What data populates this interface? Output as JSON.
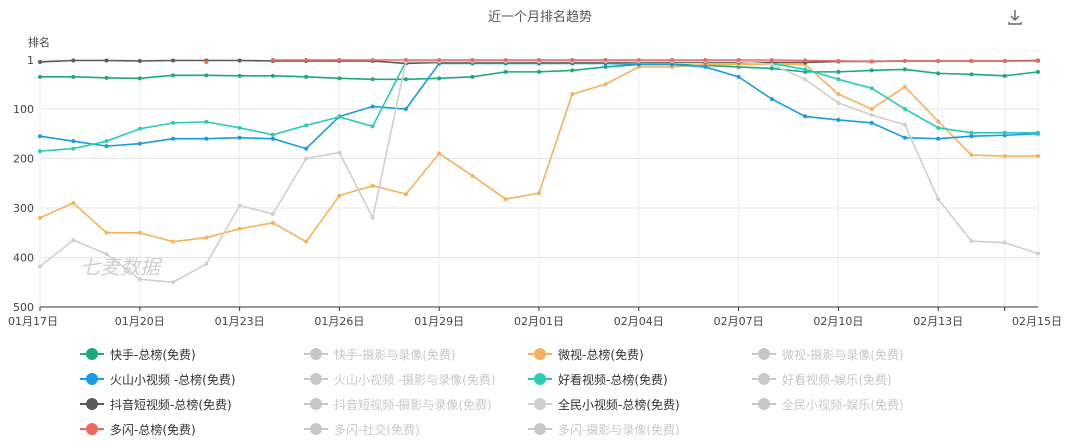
{
  "title": "近一个月排名趋势",
  "watermark": "七麦数据",
  "chart_data": {
    "type": "line",
    "ylabel": "排名",
    "ylim": [
      1,
      500
    ],
    "y_inverted": true,
    "y_ticks": [
      "1",
      "100",
      "200",
      "300",
      "400",
      "500"
    ],
    "x_ticks": [
      "01月17日",
      "01月20日",
      "01月23日",
      "01月26日",
      "01月29日",
      "02月01日",
      "02月04日",
      "02月07日",
      "02月10日",
      "02月13日",
      "02月15日"
    ],
    "grid": true,
    "series": [
      {
        "name": "快手-总榜(免费)",
        "color": "#1aaa7b",
        "active": true,
        "values": [
          35,
          35,
          37,
          38,
          32,
          32,
          33,
          33,
          35,
          38,
          40,
          40,
          38,
          35,
          25,
          25,
          22,
          15,
          10,
          10,
          12,
          15,
          18,
          25,
          25,
          22,
          20,
          28,
          30,
          33,
          25
        ]
      },
      {
        "name": "快手-摄影与录像(免费)",
        "color": "#c8c8c8",
        "active": false,
        "values": []
      },
      {
        "name": "微视-总榜(免费)",
        "color": "#f5b25a",
        "active": true,
        "values": [
          320,
          290,
          350,
          350,
          368,
          360,
          342,
          330,
          368,
          275,
          255,
          272,
          190,
          235,
          282,
          270,
          70,
          50,
          15,
          15,
          10,
          10,
          10,
          10,
          70,
          100,
          55,
          125,
          193,
          195,
          195
        ]
      },
      {
        "name": "微视-摄影与录像(免费)",
        "color": "#c8c8c8",
        "active": false,
        "values": []
      },
      {
        "name": "火山小视频 -总榜(免费)",
        "color": "#1a9be0",
        "active": true,
        "values": [
          155,
          165,
          175,
          170,
          160,
          160,
          158,
          160,
          180,
          115,
          95,
          100,
          8,
          8,
          8,
          8,
          8,
          8,
          10,
          10,
          15,
          35,
          80,
          115,
          122,
          128,
          158,
          160,
          155,
          153,
          150
        ]
      },
      {
        "name": "火山小视频 -摄影与录像(免费)",
        "color": "#c8c8c8",
        "active": false,
        "values": []
      },
      {
        "name": "好看视频-总榜(免费)",
        "color": "#29cdb5",
        "active": true,
        "values": [
          185,
          180,
          165,
          140,
          128,
          126,
          138,
          152,
          133,
          116,
          135,
          4,
          4,
          4,
          4,
          4,
          4,
          4,
          4,
          4,
          4,
          4,
          8,
          20,
          40,
          58,
          100,
          138,
          148,
          148,
          148
        ]
      },
      {
        "name": "好看视频-娱乐(免费)",
        "color": "#c8c8c8",
        "active": false,
        "values": []
      },
      {
        "name": "抖音短视频-总榜(免费)",
        "color": "#5a5a5a",
        "active": true,
        "values": [
          5,
          2,
          2,
          3,
          2,
          2,
          2,
          3,
          3,
          3,
          3,
          8,
          6,
          6,
          6,
          6,
          6,
          6,
          6,
          6,
          6,
          6,
          6,
          6,
          4,
          4,
          3,
          3,
          3,
          3,
          2
        ]
      },
      {
        "name": "抖音短视频-摄影与录像(免费)",
        "color": "#c8c8c8",
        "active": false,
        "values": []
      },
      {
        "name": "全民小视频-总榜(免费)",
        "color": "#cfcfcf",
        "active": true,
        "values": [
          418,
          365,
          393,
          444,
          450,
          413,
          295,
          312,
          200,
          188,
          320,
          4,
          4,
          4,
          4,
          4,
          4,
          4,
          4,
          4,
          4,
          4,
          10,
          40,
          88,
          112,
          132,
          282,
          367,
          370,
          392
        ]
      },
      {
        "name": "全民小视频-娱乐(免费)",
        "color": "#c8c8c8",
        "active": false,
        "values": []
      },
      {
        "name": "多闪-总榜(免费)",
        "color": "#ea6b5e",
        "active": true,
        "values": [
          null,
          null,
          null,
          null,
          null,
          5,
          null,
          1,
          1,
          0,
          0,
          0,
          0,
          0,
          0,
          0,
          0,
          1,
          1,
          1,
          1,
          1,
          1,
          2,
          3,
          4,
          3,
          3,
          3,
          3,
          3
        ]
      },
      {
        "name": "多闪-社交(免费)",
        "color": "#c8c8c8",
        "active": false,
        "values": []
      },
      {
        "name": "多闪-摄影与录像(免费)",
        "color": "#c8c8c8",
        "active": false,
        "values": []
      }
    ]
  }
}
